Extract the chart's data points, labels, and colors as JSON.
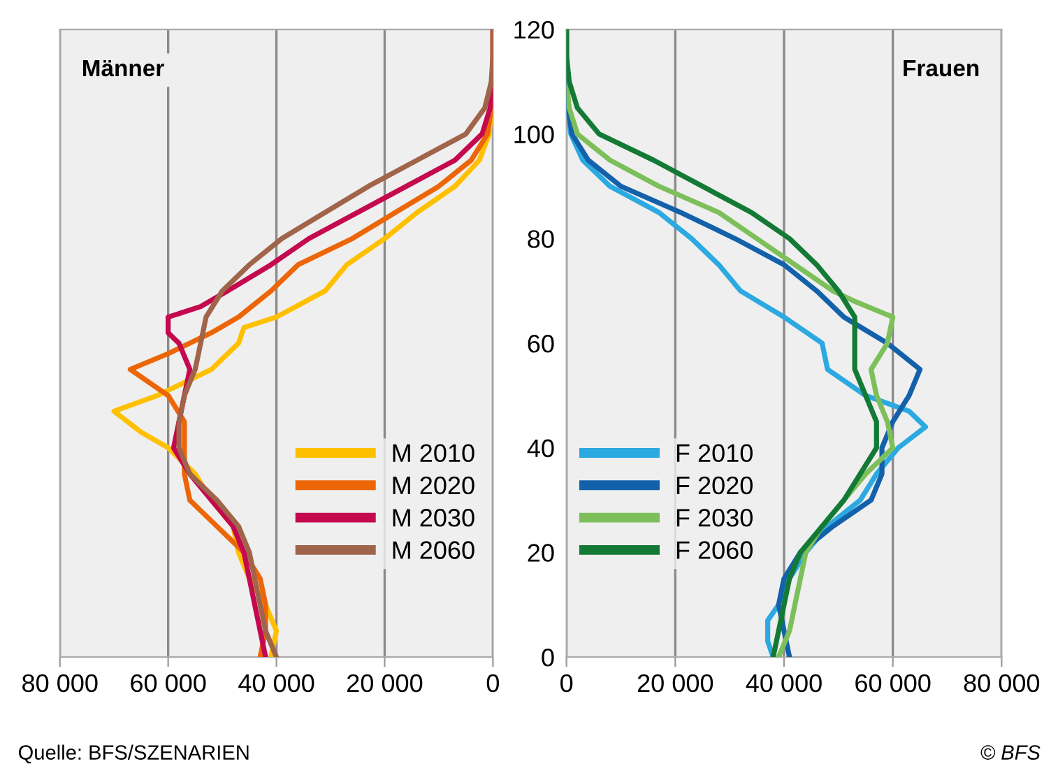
{
  "chart_data": [
    {
      "type": "line",
      "title": "Männer",
      "orientation": "horizontal",
      "grid": "x",
      "legend": "lower right",
      "tick_labels": "x",
      "xlim": [
        80000,
        0
      ],
      "xticks": [
        {
          "value": 80000,
          "label": "80 000"
        },
        {
          "value": 60000,
          "label": "60 000"
        },
        {
          "value": 40000,
          "label": "40 000"
        },
        {
          "value": 20000,
          "label": "20 000"
        },
        0
      ],
      "ylim": [
        0,
        120
      ],
      "yticks": [
        0,
        20,
        40,
        60,
        80,
        100,
        120
      ],
      "series": [
        {
          "name": "M 2010",
          "color": "#ffc000",
          "x": [
            0,
            5,
            10,
            15,
            20,
            25,
            30,
            35,
            40,
            43,
            47,
            50,
            55,
            60,
            63,
            65,
            70,
            75,
            80,
            85,
            90,
            95,
            100,
            105,
            110,
            120
          ],
          "values": [
            41000,
            40000,
            42000,
            45000,
            47000,
            48000,
            52000,
            55000,
            60000,
            65000,
            70000,
            62000,
            52000,
            47000,
            46000,
            40000,
            31000,
            27000,
            20000,
            14000,
            7000,
            2500,
            700,
            200,
            0,
            0
          ]
        },
        {
          "name": "M 2020",
          "color": "#ec6608",
          "x": [
            0,
            5,
            10,
            15,
            20,
            25,
            30,
            35,
            40,
            45,
            50,
            55,
            58,
            62,
            65,
            70,
            75,
            80,
            85,
            90,
            95,
            100,
            105,
            110,
            120
          ],
          "values": [
            43000,
            42000,
            42000,
            43000,
            46000,
            51000,
            56000,
            57000,
            57000,
            57000,
            60000,
            67000,
            60000,
            52000,
            47000,
            41000,
            36000,
            26000,
            18000,
            10000,
            4000,
            1000,
            300,
            0,
            0
          ]
        },
        {
          "name": "M 2030",
          "color": "#c4094f",
          "x": [
            0,
            5,
            10,
            15,
            20,
            25,
            30,
            35,
            40,
            45,
            50,
            55,
            60,
            62,
            65,
            67,
            70,
            75,
            80,
            85,
            90,
            95,
            100,
            105,
            110,
            120
          ],
          "values": [
            42000,
            43000,
            44000,
            45000,
            46000,
            48000,
            52000,
            56000,
            59000,
            58000,
            57000,
            56000,
            58000,
            60000,
            60000,
            54000,
            49000,
            41000,
            34000,
            25000,
            16000,
            7000,
            2000,
            500,
            0,
            0
          ]
        },
        {
          "name": "M 2060",
          "color": "#a0644a",
          "x": [
            0,
            5,
            10,
            15,
            20,
            25,
            30,
            35,
            40,
            45,
            50,
            55,
            60,
            65,
            70,
            75,
            80,
            85,
            90,
            95,
            100,
            105,
            110,
            115,
            120
          ],
          "values": [
            40000,
            42000,
            43000,
            44000,
            45000,
            47000,
            51000,
            56000,
            58000,
            58000,
            57000,
            55000,
            54000,
            53000,
            50000,
            45000,
            39000,
            31000,
            23000,
            14000,
            5000,
            1500,
            300,
            0,
            0
          ]
        }
      ]
    },
    {
      "type": "line",
      "title": "Frauen",
      "orientation": "horizontal",
      "grid": "x",
      "legend": "lower left",
      "xlim": [
        0,
        80000
      ],
      "xticks": [
        0,
        {
          "value": 20000,
          "label": "20 000"
        },
        {
          "value": 40000,
          "label": "40 000"
        },
        {
          "value": 60000,
          "label": "60 000"
        },
        {
          "value": 80000,
          "label": "80 000"
        }
      ],
      "ylim": [
        0,
        120
      ],
      "yticks": [
        0,
        20,
        40,
        60,
        80,
        100,
        120
      ],
      "series": [
        {
          "name": "F 2010",
          "color": "#2ca9e1",
          "x": [
            0,
            3,
            7,
            10,
            15,
            20,
            25,
            30,
            35,
            40,
            44,
            47,
            50,
            55,
            60,
            65,
            70,
            75,
            80,
            85,
            90,
            95,
            100,
            105,
            110,
            120
          ],
          "values": [
            38000,
            37000,
            37000,
            39000,
            41000,
            44000,
            48000,
            54000,
            57000,
            61000,
            66000,
            63000,
            55000,
            48000,
            47000,
            40000,
            32000,
            28000,
            23000,
            17000,
            8000,
            3000,
            800,
            200,
            0,
            0
          ]
        },
        {
          "name": "F 2020",
          "color": "#1361aa",
          "x": [
            0,
            5,
            10,
            15,
            20,
            25,
            30,
            35,
            40,
            45,
            50,
            55,
            60,
            65,
            70,
            75,
            80,
            85,
            90,
            95,
            100,
            105,
            110,
            120
          ],
          "values": [
            41000,
            40000,
            39000,
            40000,
            43000,
            49000,
            56000,
            58000,
            58000,
            60000,
            63000,
            65000,
            59000,
            51000,
            46000,
            40000,
            31000,
            21000,
            10000,
            4000,
            1000,
            300,
            0,
            0
          ]
        },
        {
          "name": "F 2030",
          "color": "#7dbf5a",
          "x": [
            0,
            5,
            10,
            15,
            20,
            25,
            30,
            35,
            40,
            45,
            50,
            55,
            60,
            65,
            68,
            70,
            75,
            80,
            85,
            90,
            95,
            100,
            105,
            110,
            120
          ],
          "values": [
            39000,
            41000,
            42000,
            43000,
            44000,
            47000,
            51000,
            55000,
            60000,
            59000,
            57000,
            56000,
            59000,
            60000,
            53000,
            49000,
            42000,
            35000,
            28000,
            17000,
            8000,
            2000,
            500,
            0,
            0
          ]
        },
        {
          "name": "F 2060",
          "color": "#137a35",
          "x": [
            0,
            5,
            10,
            15,
            20,
            25,
            30,
            35,
            40,
            45,
            50,
            55,
            60,
            65,
            70,
            75,
            80,
            85,
            90,
            95,
            100,
            105,
            110,
            115,
            120
          ],
          "values": [
            38000,
            39000,
            40000,
            41000,
            43000,
            47000,
            51000,
            54000,
            57000,
            57000,
            55000,
            53000,
            53000,
            53000,
            50000,
            46000,
            41000,
            34000,
            25000,
            16000,
            6000,
            2000,
            500,
            0,
            0
          ]
        }
      ],
      "annotations": [
        "Quelle: BFS/SZENARIEN",
        "© BFS"
      ]
    }
  ]
}
